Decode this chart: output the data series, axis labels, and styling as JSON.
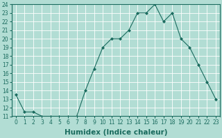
{
  "title": "",
  "xlabel": "Humidex (Indice chaleur)",
  "ylabel": "",
  "x": [
    0,
    1,
    2,
    3,
    4,
    5,
    6,
    7,
    8,
    9,
    10,
    11,
    12,
    13,
    14,
    15,
    16,
    17,
    18,
    19,
    20,
    21,
    22,
    23
  ],
  "y": [
    13.5,
    11.5,
    11.5,
    11.0,
    11.0,
    11.0,
    11.0,
    11.0,
    14.0,
    16.5,
    19.0,
    20.0,
    20.0,
    21.0,
    23.0,
    23.0,
    24.0,
    22.0,
    23.0,
    20.0,
    19.0,
    17.0,
    15.0,
    13.0
  ],
  "line_color": "#1a6b5e",
  "marker": "D",
  "marker_size": 2.0,
  "bg_color": "#b2ddd4",
  "grid_color": "#ffffff",
  "ylim": [
    11,
    24
  ],
  "xlim": [
    -0.5,
    23.5
  ],
  "yticks": [
    11,
    12,
    13,
    14,
    15,
    16,
    17,
    18,
    19,
    20,
    21,
    22,
    23,
    24
  ],
  "xticks": [
    0,
    1,
    2,
    3,
    4,
    5,
    6,
    7,
    8,
    9,
    10,
    11,
    12,
    13,
    14,
    15,
    16,
    17,
    18,
    19,
    20,
    21,
    22,
    23
  ],
  "tick_fontsize": 5.5,
  "xlabel_fontsize": 7.5
}
